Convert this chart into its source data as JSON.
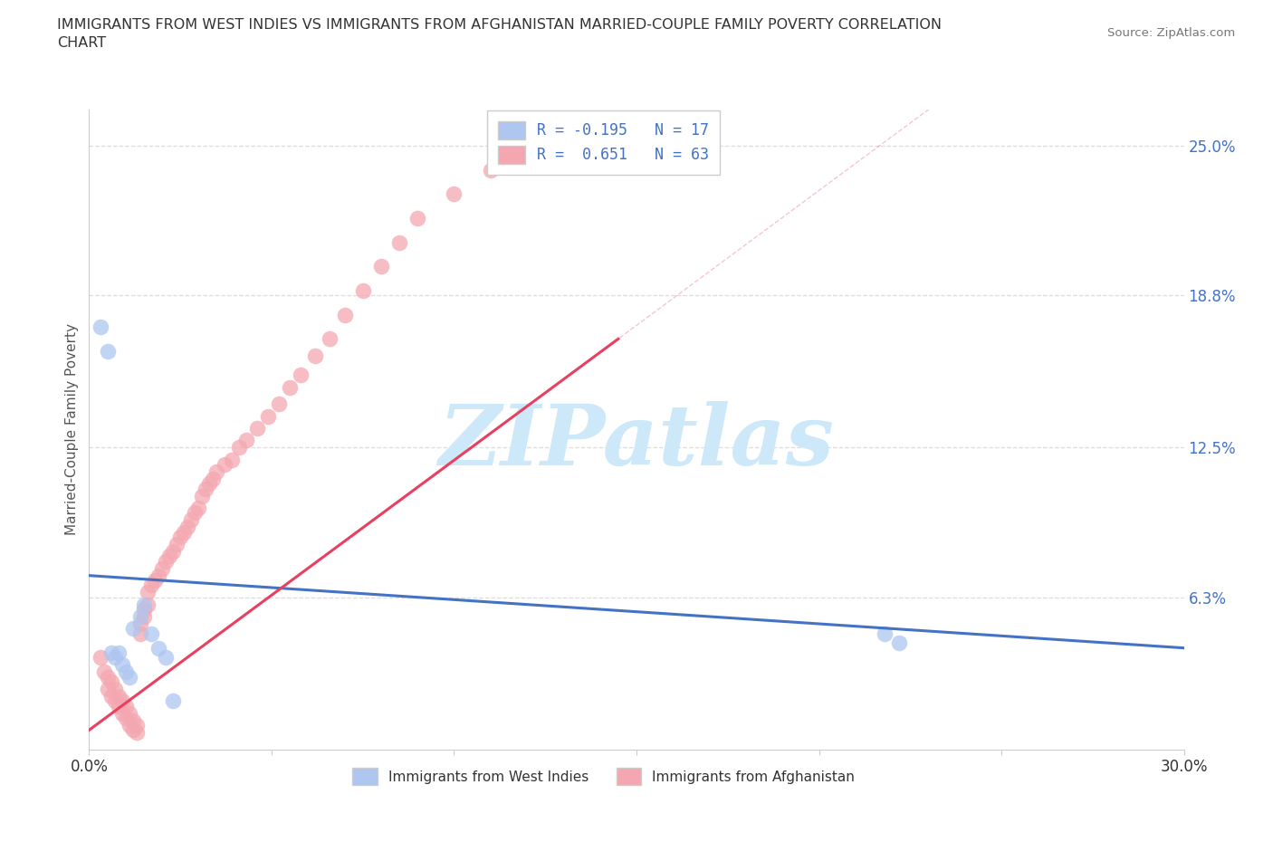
{
  "title_line1": "IMMIGRANTS FROM WEST INDIES VS IMMIGRANTS FROM AFGHANISTAN MARRIED-COUPLE FAMILY POVERTY CORRELATION",
  "title_line2": "CHART",
  "source": "Source: ZipAtlas.com",
  "ylabel": "Married-Couple Family Poverty",
  "xmin": 0.0,
  "xmax": 0.3,
  "ymin": 0.0,
  "ymax": 0.265,
  "yticks": [
    0.063,
    0.125,
    0.188,
    0.25
  ],
  "ytick_labels": [
    "6.3%",
    "12.5%",
    "18.8%",
    "25.0%"
  ],
  "xticks": [
    0.0,
    0.05,
    0.1,
    0.15,
    0.2,
    0.25,
    0.3
  ],
  "r_west_indies": -0.195,
  "n_west_indies": 17,
  "r_afghanistan": 0.651,
  "n_afghanistan": 63,
  "color_west_indies": "#aec6f0",
  "color_afghanistan": "#f4a7b0",
  "line_color_west_indies": "#4472c4",
  "line_color_afghanistan": "#e84060",
  "watermark": "ZIPatlas",
  "watermark_color": "#cde8f8",
  "wi_x": [
    0.003,
    0.005,
    0.006,
    0.007,
    0.008,
    0.009,
    0.01,
    0.011,
    0.012,
    0.014,
    0.015,
    0.017,
    0.019,
    0.021,
    0.023,
    0.218,
    0.222
  ],
  "wi_y": [
    0.175,
    0.165,
    0.04,
    0.038,
    0.04,
    0.035,
    0.032,
    0.03,
    0.05,
    0.055,
    0.06,
    0.048,
    0.042,
    0.038,
    0.02,
    0.048,
    0.044
  ],
  "af_x": [
    0.003,
    0.004,
    0.005,
    0.005,
    0.006,
    0.006,
    0.007,
    0.007,
    0.008,
    0.008,
    0.009,
    0.009,
    0.01,
    0.01,
    0.011,
    0.011,
    0.012,
    0.012,
    0.013,
    0.013,
    0.014,
    0.014,
    0.015,
    0.015,
    0.016,
    0.016,
    0.017,
    0.018,
    0.019,
    0.02,
    0.021,
    0.022,
    0.023,
    0.024,
    0.025,
    0.026,
    0.027,
    0.028,
    0.029,
    0.03,
    0.031,
    0.032,
    0.033,
    0.034,
    0.035,
    0.037,
    0.039,
    0.041,
    0.043,
    0.046,
    0.049,
    0.052,
    0.055,
    0.058,
    0.062,
    0.066,
    0.07,
    0.075,
    0.08,
    0.085,
    0.09,
    0.1,
    0.11
  ],
  "af_y": [
    0.038,
    0.032,
    0.03,
    0.025,
    0.028,
    0.022,
    0.025,
    0.02,
    0.022,
    0.018,
    0.02,
    0.015,
    0.018,
    0.013,
    0.015,
    0.01,
    0.012,
    0.008,
    0.01,
    0.007,
    0.048,
    0.052,
    0.055,
    0.058,
    0.06,
    0.065,
    0.068,
    0.07,
    0.072,
    0.075,
    0.078,
    0.08,
    0.082,
    0.085,
    0.088,
    0.09,
    0.092,
    0.095,
    0.098,
    0.1,
    0.105,
    0.108,
    0.11,
    0.112,
    0.115,
    0.118,
    0.12,
    0.125,
    0.128,
    0.133,
    0.138,
    0.143,
    0.15,
    0.155,
    0.163,
    0.17,
    0.18,
    0.19,
    0.2,
    0.21,
    0.22,
    0.23,
    0.24
  ],
  "wi_trend_x": [
    0.0,
    0.3
  ],
  "wi_trend_y": [
    0.072,
    0.042
  ],
  "af_trend_x": [
    0.0,
    0.145
  ],
  "af_trend_y": [
    0.008,
    0.17
  ]
}
